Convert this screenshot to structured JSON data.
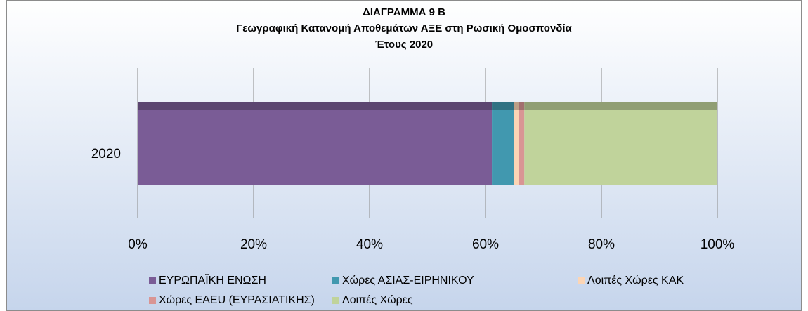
{
  "chart_data": {
    "type": "bar",
    "orientation": "horizontal",
    "stacked": true,
    "title": [
      "ΔΙΑΓΡΑΜΜΑ 9 Β",
      "Γεωγραφική Κατανομή Αποθεμάτων ΑΞΕ στη Ρωσική Ομοσπονδία",
      "Έτους 2020"
    ],
    "categories": [
      "2020"
    ],
    "series": [
      {
        "name": "ΕΥΡΩΠΑΪΚΗ ΕΝΩΣΗ",
        "color": "#7a5c96",
        "values": [
          61.1
        ]
      },
      {
        "name": "Χώρες ΑΣΙΑΣ-ΕΙΡΗΝΙΚΟΥ",
        "color": "#4198af",
        "values": [
          3.8
        ]
      },
      {
        "name": "Λοιπές Χώρες ΚΑΚ",
        "color": "#fcd5b5",
        "values": [
          0.8
        ]
      },
      {
        "name": "Χώρες ΕΑΕU (ΕΥΡΑΣΙΑΤΙΚΗΣ)",
        "color": "#d99594",
        "values": [
          1.0
        ]
      },
      {
        "name": "Λοιπές Χώρες",
        "color": "#c0d39b",
        "values": [
          33.3
        ]
      }
    ],
    "xlim": [
      0,
      100
    ],
    "xticks": [
      {
        "value": 0,
        "label": "0%"
      },
      {
        "value": 20,
        "label": "20%"
      },
      {
        "value": 40,
        "label": "40%"
      },
      {
        "value": 60,
        "label": "60%"
      },
      {
        "value": 80,
        "label": "80%"
      },
      {
        "value": 100,
        "label": "100%"
      }
    ],
    "grid": true,
    "legend": "bottom"
  }
}
